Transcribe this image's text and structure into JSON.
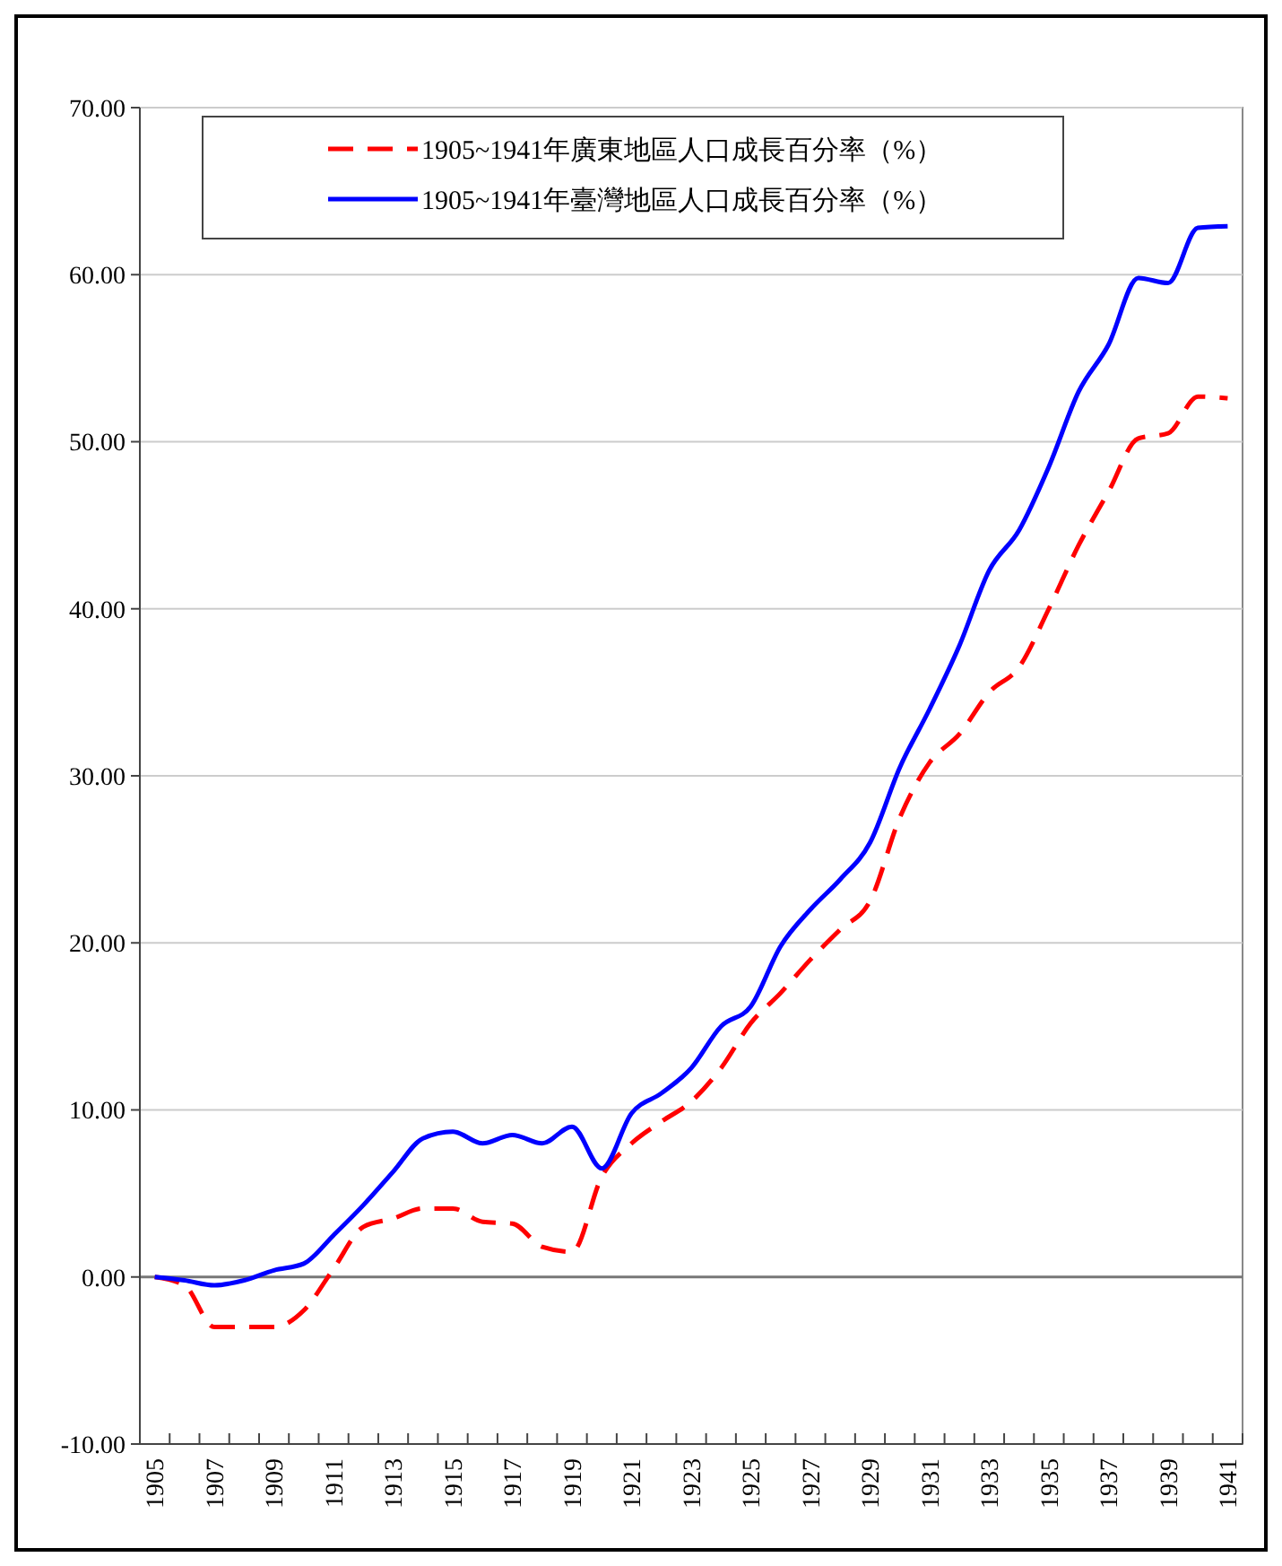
{
  "chart_data": {
    "type": "line",
    "categories": [
      "1905",
      null,
      "1907",
      null,
      "1909",
      null,
      "1911",
      null,
      "1913",
      null,
      "1915",
      null,
      "1917",
      null,
      "1919",
      null,
      "1921",
      null,
      "1923",
      null,
      "1925",
      null,
      "1927",
      null,
      "1929",
      null,
      "1931",
      null,
      "1933",
      null,
      "1935",
      null,
      "1937",
      null,
      "1939",
      null,
      "1941"
    ],
    "series": [
      {
        "name": "1905~1941年廣東地區人口成長百分率（%）",
        "color": "#ff0000",
        "line_style": "dashed",
        "values": [
          0,
          -0.5,
          -3.0,
          -3.0,
          -3.0,
          -2.0,
          0.5,
          3.0,
          3.5,
          4.1,
          4.1,
          3.3,
          3.2,
          1.8,
          1.5,
          6.0,
          8.0,
          9.3,
          10.5,
          12.5,
          15.2,
          17.0,
          19.0,
          20.8,
          22.5,
          27.5,
          30.8,
          32.5,
          35.0,
          36.5,
          40.0,
          43.8,
          47.0,
          50.2,
          50.5,
          52.7,
          52.6
        ]
      },
      {
        "name": "1905~1941年臺灣地區人口成長百分率（%）",
        "color": "#0000ff",
        "line_style": "solid",
        "values": [
          0,
          -0.2,
          -0.5,
          -0.2,
          0.4,
          0.8,
          2.5,
          4.3,
          6.3,
          8.3,
          8.7,
          8.0,
          8.5,
          8.0,
          9.0,
          6.5,
          9.8,
          11.0,
          12.5,
          15.0,
          16.2,
          19.8,
          22.0,
          23.8,
          26.0,
          30.5,
          34.0,
          37.8,
          42.3,
          44.7,
          48.5,
          53.0,
          55.8,
          59.8,
          59.5,
          62.8,
          62.9
        ]
      }
    ],
    "ylim": [
      -10,
      70
    ],
    "yticks": [
      {
        "value": -10,
        "label": "-10.00"
      },
      {
        "value": 0,
        "label": "0.00"
      },
      {
        "value": 10,
        "label": "10.00"
      },
      {
        "value": 20,
        "label": "20.00"
      },
      {
        "value": 30,
        "label": "30.00"
      },
      {
        "value": 40,
        "label": "40.00"
      },
      {
        "value": 50,
        "label": "50.00"
      },
      {
        "value": 60,
        "label": "60.00"
      },
      {
        "value": 70,
        "label": "70.00"
      }
    ],
    "grid": "y",
    "legend": "top",
    "marker": "none"
  }
}
